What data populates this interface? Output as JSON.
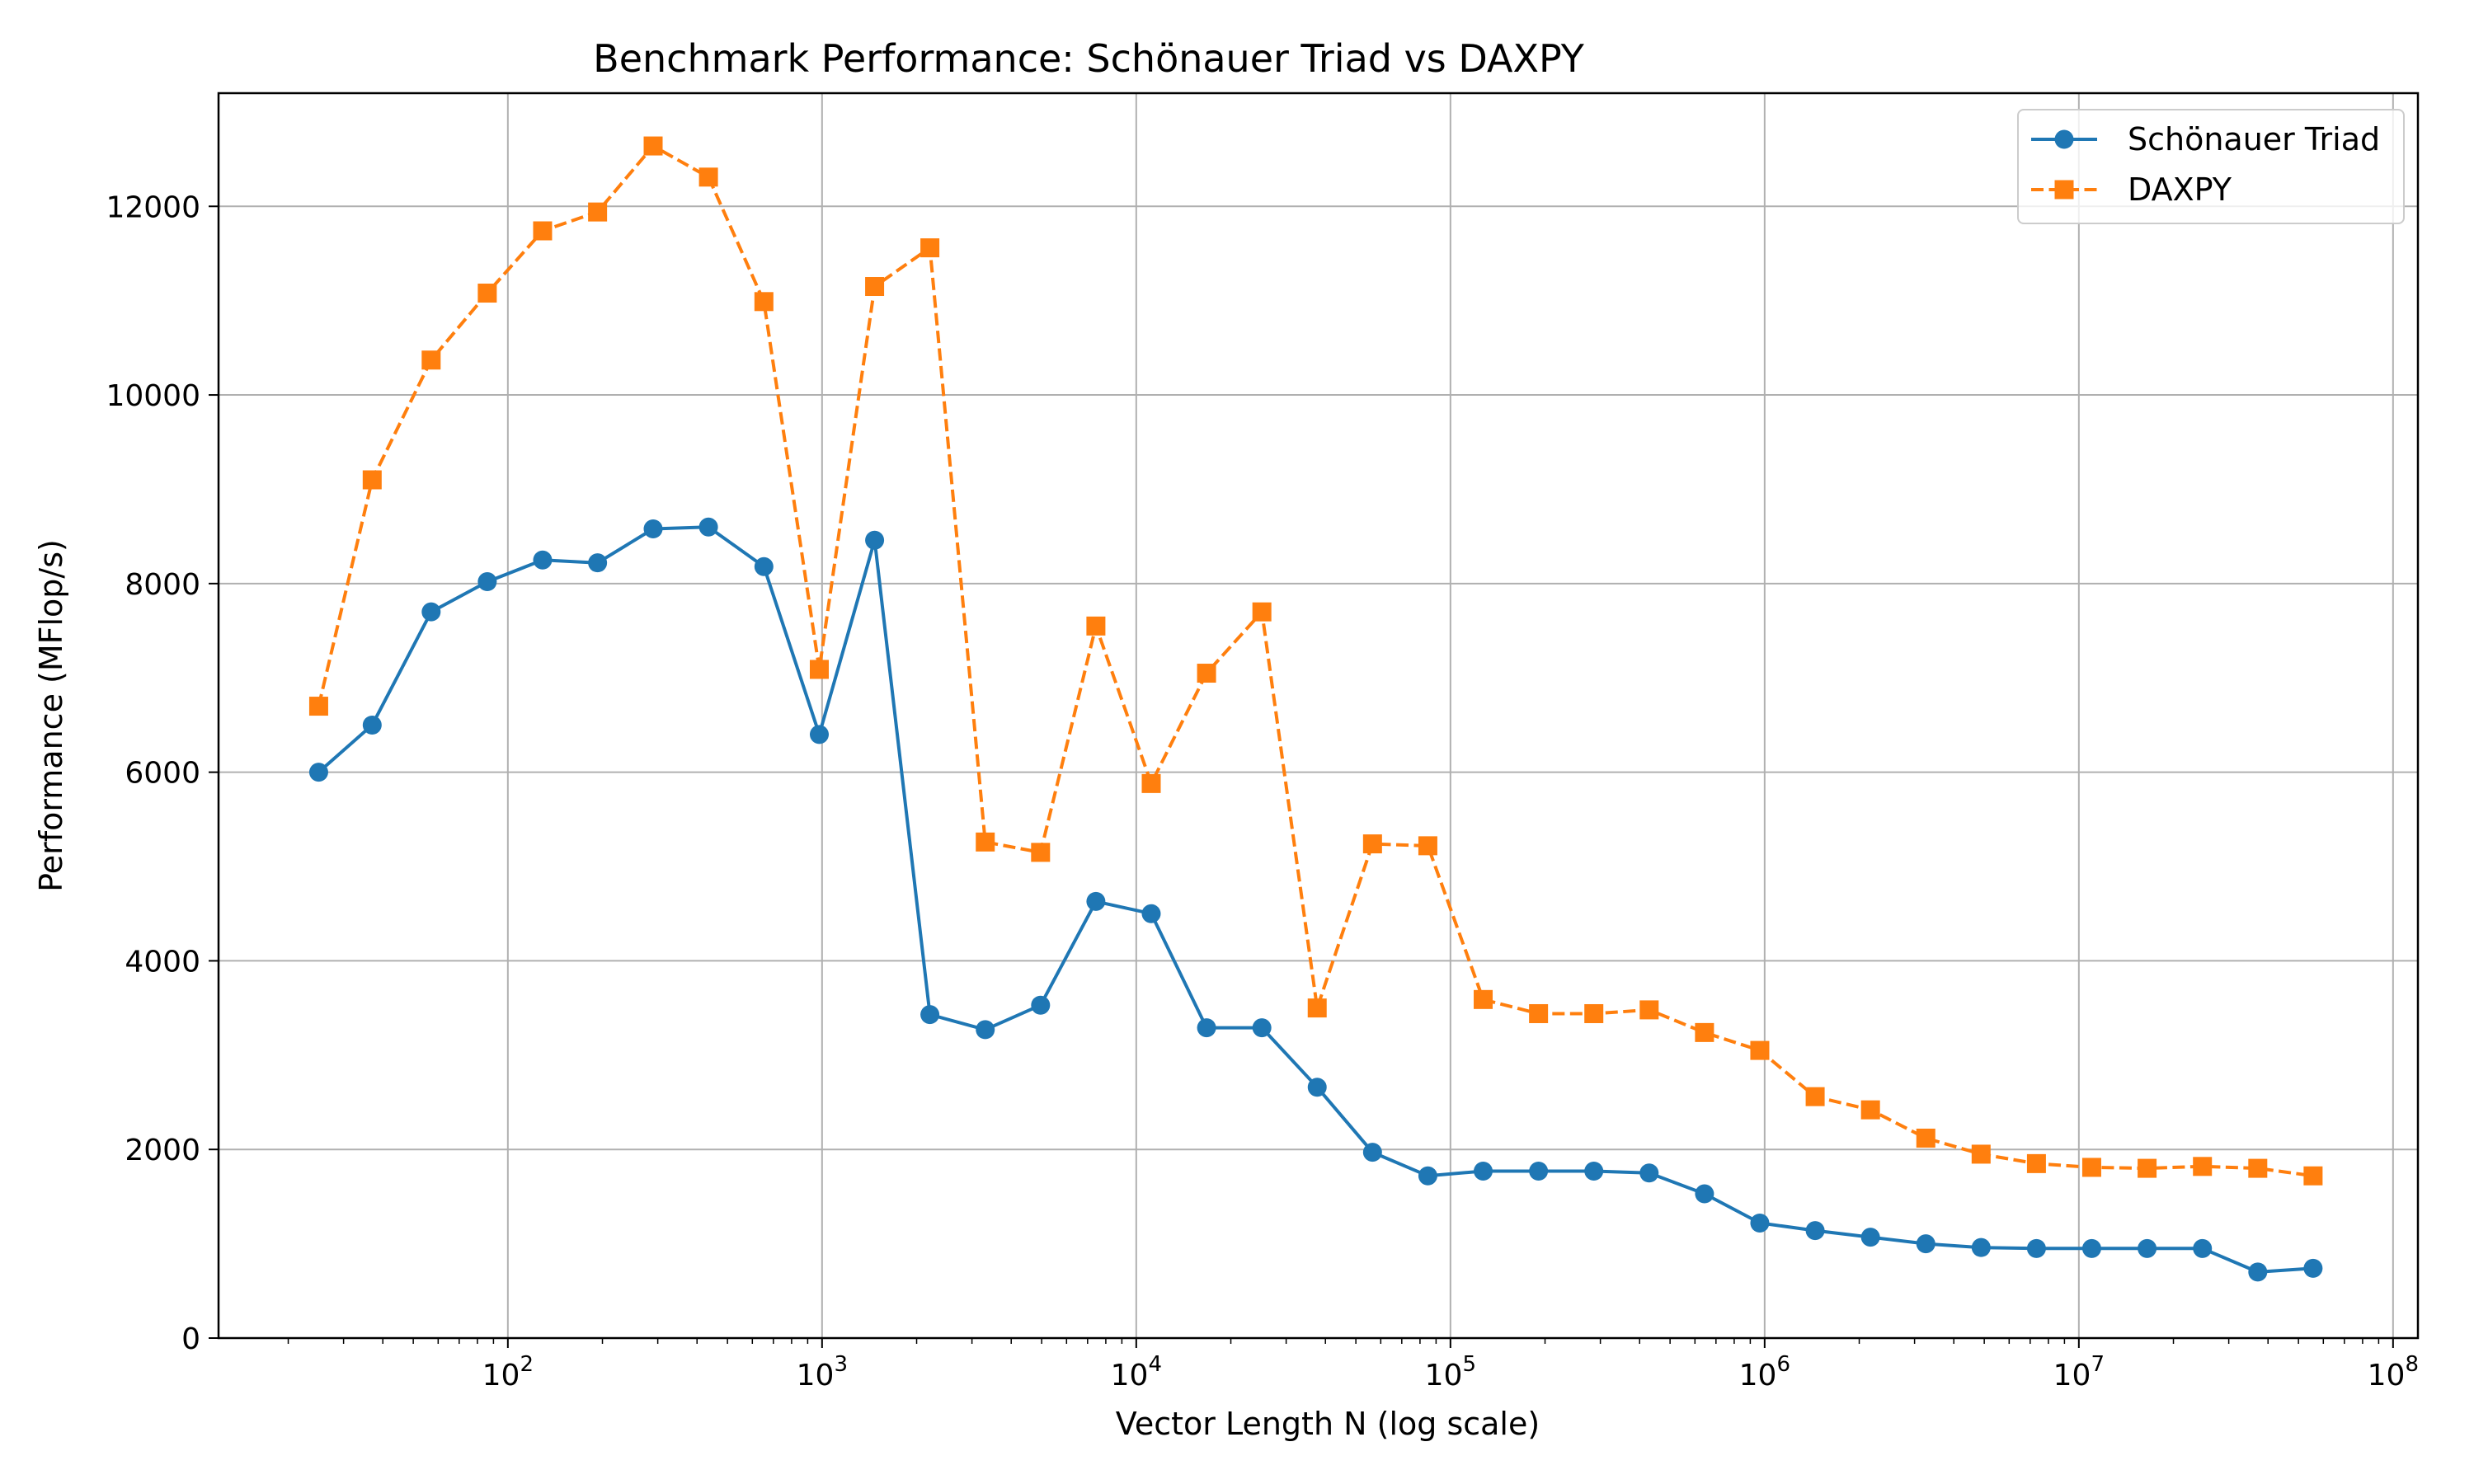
{
  "chart_data": {
    "type": "line",
    "title": "Benchmark Performance: Schönauer Triad vs DAXPY",
    "xlabel": "Vector Length N (log scale)",
    "ylabel": "Performance (MFlop/s)",
    "x_scale": "log",
    "xlim": [
      12,
      120000000
    ],
    "ylim": [
      0,
      13200
    ],
    "x_ticks": [
      {
        "value": 100,
        "base": "10",
        "exp": "2"
      },
      {
        "value": 1000,
        "base": "10",
        "exp": "3"
      },
      {
        "value": 10000,
        "base": "10",
        "exp": "4"
      },
      {
        "value": 100000,
        "base": "10",
        "exp": "5"
      },
      {
        "value": 1000000,
        "base": "10",
        "exp": "6"
      },
      {
        "value": 10000000,
        "base": "10",
        "exp": "7"
      },
      {
        "value": 100000000,
        "base": "10",
        "exp": "8"
      }
    ],
    "y_ticks": [
      {
        "value": 0,
        "label": "0"
      },
      {
        "value": 2000,
        "label": "2000"
      },
      {
        "value": 4000,
        "label": "4000"
      },
      {
        "value": 6000,
        "label": "6000"
      },
      {
        "value": 8000,
        "label": "8000"
      },
      {
        "value": 10000,
        "label": "10000"
      },
      {
        "value": 12000,
        "label": "12000"
      }
    ],
    "grid": true,
    "legend_position": "top-right",
    "x": [
      25,
      37,
      57,
      86,
      129,
      193,
      290,
      435,
      653,
      980,
      1470,
      2204,
      3307,
      4960,
      7440,
      11160,
      16740,
      25110,
      37660,
      56490,
      84740,
      127100,
      190700,
      286000,
      429000,
      643500,
      965200,
      1448000,
      2172000,
      3258000,
      4886000,
      7329000,
      10990000,
      16490000,
      24740000,
      37110000,
      55660000
    ],
    "series": [
      {
        "name": "Schönauer Triad",
        "color": "#1f77b4",
        "marker": "circle",
        "linestyle": "solid",
        "values": [
          6000,
          6500,
          7700,
          8020,
          8250,
          8220,
          8580,
          8600,
          8180,
          6400,
          8460,
          3430,
          3270,
          3530,
          4630,
          4500,
          3290,
          3290,
          2660,
          1970,
          1720,
          1770,
          1770,
          1770,
          1750,
          1530,
          1220,
          1140,
          1070,
          1000,
          960,
          950,
          950,
          950,
          950,
          700,
          740
        ]
      },
      {
        "name": "DAXPY",
        "color": "#ff7f0e",
        "marker": "square",
        "linestyle": "dashed",
        "values": [
          6700,
          9100,
          10370,
          11080,
          11740,
          11940,
          12640,
          12310,
          10990,
          7090,
          11150,
          11560,
          5260,
          5150,
          7550,
          5880,
          7050,
          7700,
          3500,
          5240,
          5220,
          3590,
          3440,
          3440,
          3480,
          3240,
          3050,
          2560,
          2420,
          2120,
          1950,
          1850,
          1810,
          1800,
          1820,
          1800,
          1720
        ]
      }
    ]
  }
}
